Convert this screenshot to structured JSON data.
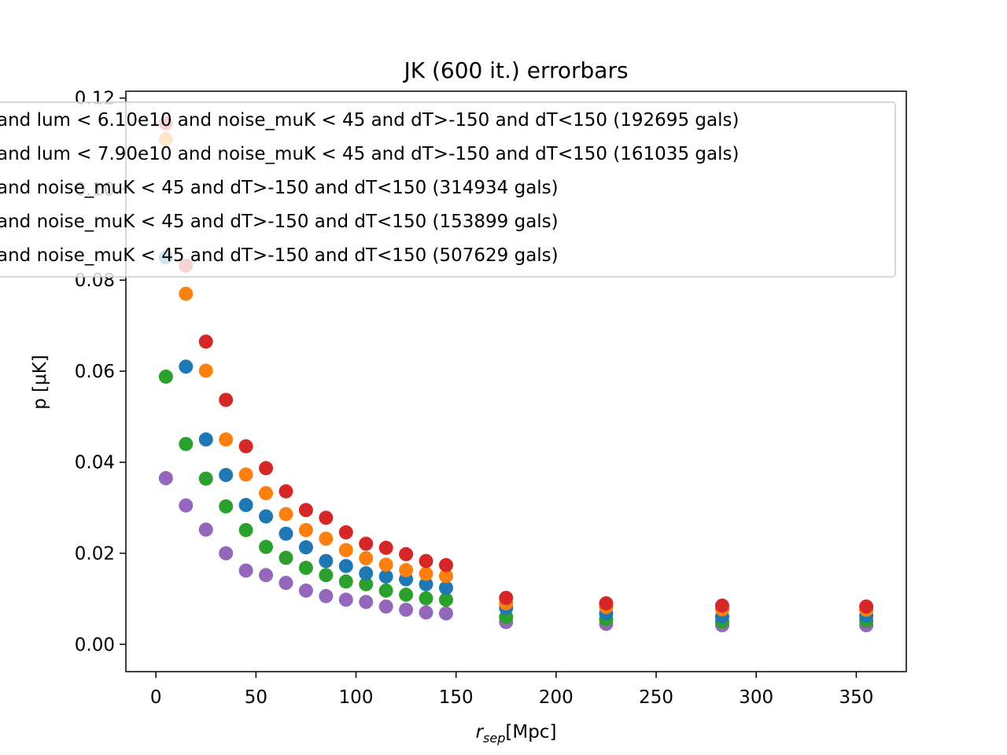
{
  "chart_data": {
    "type": "scatter",
    "title": "JK (600 it.) errorbars",
    "xlabel_main": "r",
    "xlabel_sub": "sep",
    "xlabel_unit": "[Mpc]",
    "ylabel": "p [μK]",
    "xlim": [
      -15,
      375
    ],
    "ylim": [
      -0.006,
      0.1215
    ],
    "x_ticks": [
      0,
      50,
      100,
      150,
      200,
      250,
      300,
      350
    ],
    "x_tick_labels": [
      "0",
      "50",
      "100",
      "150",
      "200",
      "250",
      "300",
      "350"
    ],
    "y_ticks": [
      0.0,
      0.02,
      0.04,
      0.06,
      0.08,
      0.1,
      0.12
    ],
    "y_tick_labels": [
      "0.00",
      "0.02",
      "0.04",
      "0.06",
      "0.08",
      "0.10",
      "0.12"
    ],
    "legend_placement": "top, overflowing left edge",
    "x": [
      5,
      15,
      25,
      35,
      45,
      55,
      65,
      75,
      85,
      95,
      105,
      115,
      125,
      135,
      145,
      175,
      225,
      283,
      355
    ],
    "series": [
      {
        "label": "and noise_muK < 45 and dT>-150 and dT<150 (507629 gals)",
        "legend_label": "and noise_muK < 45 and dT>-150 and dT<150 (507629 gals)",
        "color": "#9467bd",
        "values": [
          0.0365,
          0.0305,
          0.0252,
          0.02,
          0.0162,
          0.0152,
          0.0135,
          0.0118,
          0.0106,
          0.0098,
          0.0093,
          0.0083,
          0.0076,
          0.007,
          0.0068,
          0.0049,
          0.0045,
          0.0042,
          0.0042
        ]
      },
      {
        "label": "and noise_muK < 45 and dT>-150 and dT<150 (153899 gals)",
        "legend_label": "and noise_muK < 45 and dT>-150 and dT<150 (153899 gals)",
        "color": "#2ca02c",
        "values": [
          0.0588,
          0.044,
          0.0364,
          0.0303,
          0.0251,
          0.0214,
          0.019,
          0.0168,
          0.0152,
          0.0138,
          0.0132,
          0.0118,
          0.0109,
          0.0101,
          0.0098,
          0.006,
          0.0055,
          0.005,
          0.0052
        ]
      },
      {
        "label": "and noise_muK < 45 and dT>-150 and dT<150 (314934 gals)",
        "legend_label": "and noise_muK < 45 and dT>-150 and dT<150 (314934 gals)",
        "color": "#1f77b4",
        "values": [
          0.085,
          0.061,
          0.045,
          0.0372,
          0.0306,
          0.0281,
          0.0243,
          0.0213,
          0.0183,
          0.0172,
          0.0156,
          0.0149,
          0.0143,
          0.0132,
          0.0124,
          0.008,
          0.0068,
          0.0061,
          0.0063
        ]
      },
      {
        "label": "and lum < 7.90e10 and noise_muK < 45 and dT>-150 and dT<150 (161035 gals)",
        "legend_label": "and lum < 7.90e10 and noise_muK < 45 and dT>-150 and dT<150 (161035 gals)",
        "color": "#ff7f0e",
        "values": [
          0.111,
          0.077,
          0.0601,
          0.045,
          0.0373,
          0.0332,
          0.0286,
          0.0251,
          0.0232,
          0.0207,
          0.0189,
          0.0175,
          0.0163,
          0.0155,
          0.015,
          0.009,
          0.0082,
          0.0077,
          0.0076
        ]
      },
      {
        "label": "and lum < 6.10e10 and noise_muK < 45 and dT>-150 and dT<150 (192695 gals)",
        "legend_label": "and lum < 6.10e10 and noise_muK < 45 and dT>-150 and dT<150 (192695 gals)",
        "color": "#d62728",
        "values": [
          0.1145,
          0.0832,
          0.0665,
          0.0537,
          0.0435,
          0.0387,
          0.0336,
          0.0295,
          0.0278,
          0.0246,
          0.0221,
          0.0212,
          0.0198,
          0.0183,
          0.0174,
          0.0102,
          0.009,
          0.0085,
          0.0083
        ]
      }
    ],
    "legend_order": [
      4,
      3,
      2,
      1,
      0
    ]
  }
}
